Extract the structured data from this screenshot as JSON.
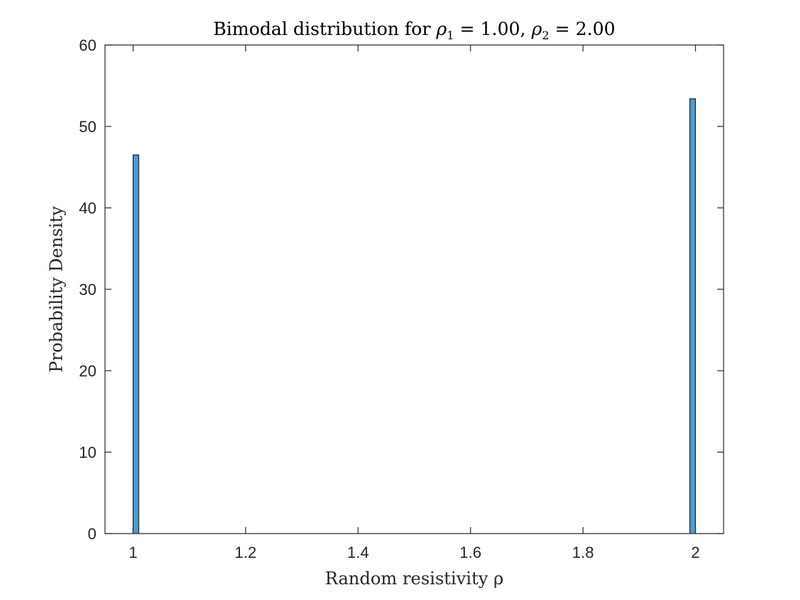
{
  "chart_data": {
    "type": "bar",
    "title_parts": {
      "prefix": "Bimodal distribution for ",
      "rho1_symbol": "ρ",
      "rho1_sub": "1",
      "rho1_value": " = 1.00, ",
      "rho2_symbol": "ρ",
      "rho2_sub": "2",
      "rho2_value": " = 2.00"
    },
    "xlabel": "Random resistivity ρ",
    "ylabel": "Probability Density",
    "xlim": [
      0.95,
      2.05
    ],
    "ylim": [
      0,
      60
    ],
    "bin_width": 0.01,
    "bars": [
      {
        "x": 1.005,
        "value": 46.5
      },
      {
        "x": 1.995,
        "value": 53.4
      }
    ],
    "x_ticks": [
      1,
      1.2,
      1.4,
      1.6,
      1.8,
      2
    ],
    "x_tick_labels": [
      "1",
      "1.2",
      "1.4",
      "1.6",
      "1.8",
      "2"
    ],
    "y_ticks": [
      0,
      10,
      20,
      30,
      40,
      50,
      60
    ],
    "y_tick_labels": [
      "0",
      "10",
      "20",
      "30",
      "40",
      "50",
      "60"
    ],
    "bar_color": "#4d9bd3",
    "edge_color": "#000000",
    "grid": false
  }
}
